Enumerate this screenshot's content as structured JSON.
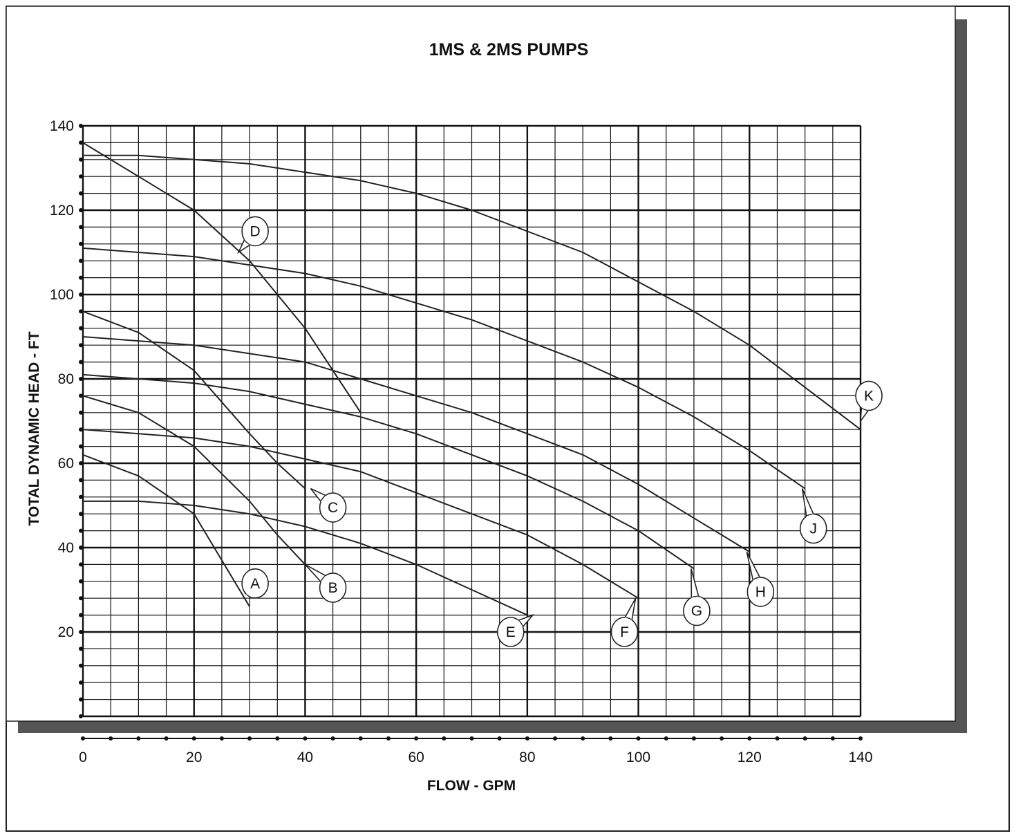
{
  "chart_data": {
    "type": "line",
    "title": "1MS & 2MS PUMPS",
    "xlabel": "FLOW - GPM",
    "ylabel": "TOTAL DYNAMIC HEAD - FT",
    "xlim": [
      0,
      140
    ],
    "ylim": [
      0,
      140
    ],
    "x_ticks": [
      0,
      20,
      40,
      60,
      80,
      100,
      120,
      140
    ],
    "y_ticks": [
      20,
      40,
      60,
      80,
      100,
      120,
      140
    ],
    "x_minor_step": 5,
    "y_minor_step": 4,
    "grid": true,
    "series": [
      {
        "name": "A",
        "points": [
          [
            0,
            62
          ],
          [
            10,
            57
          ],
          [
            20,
            48
          ],
          [
            25,
            37
          ],
          [
            30,
            26
          ]
        ]
      },
      {
        "name": "B",
        "points": [
          [
            0,
            76
          ],
          [
            10,
            72
          ],
          [
            20,
            64
          ],
          [
            30,
            51
          ],
          [
            35,
            43
          ],
          [
            40,
            36
          ]
        ]
      },
      {
        "name": "C",
        "points": [
          [
            0,
            96
          ],
          [
            10,
            91
          ],
          [
            20,
            82
          ],
          [
            30,
            67
          ],
          [
            35,
            60
          ],
          [
            40,
            54
          ]
        ]
      },
      {
        "name": "D",
        "points": [
          [
            0,
            136
          ],
          [
            10,
            128
          ],
          [
            20,
            120
          ],
          [
            30,
            108
          ],
          [
            40,
            92
          ],
          [
            45,
            82
          ],
          [
            50,
            72
          ]
        ]
      },
      {
        "name": "E",
        "points": [
          [
            0,
            51
          ],
          [
            10,
            51
          ],
          [
            20,
            50
          ],
          [
            30,
            48
          ],
          [
            40,
            45
          ],
          [
            50,
            41
          ],
          [
            60,
            36
          ],
          [
            70,
            30
          ],
          [
            80,
            24
          ]
        ]
      },
      {
        "name": "F",
        "points": [
          [
            0,
            68
          ],
          [
            10,
            67
          ],
          [
            20,
            66
          ],
          [
            30,
            64
          ],
          [
            40,
            61
          ],
          [
            50,
            58
          ],
          [
            60,
            53
          ],
          [
            70,
            48
          ],
          [
            80,
            43
          ],
          [
            90,
            36
          ],
          [
            100,
            28
          ]
        ]
      },
      {
        "name": "G",
        "points": [
          [
            0,
            81
          ],
          [
            10,
            80
          ],
          [
            20,
            79
          ],
          [
            30,
            77
          ],
          [
            40,
            74
          ],
          [
            50,
            71
          ],
          [
            60,
            67
          ],
          [
            70,
            62
          ],
          [
            80,
            57
          ],
          [
            90,
            51
          ],
          [
            100,
            44
          ],
          [
            110,
            35
          ]
        ]
      },
      {
        "name": "H",
        "points": [
          [
            0,
            90
          ],
          [
            10,
            89
          ],
          [
            20,
            88
          ],
          [
            30,
            86
          ],
          [
            40,
            84
          ],
          [
            50,
            80
          ],
          [
            60,
            76
          ],
          [
            70,
            72
          ],
          [
            80,
            67
          ],
          [
            90,
            62
          ],
          [
            100,
            55
          ],
          [
            110,
            47
          ],
          [
            120,
            39
          ]
        ]
      },
      {
        "name": "J",
        "points": [
          [
            0,
            111
          ],
          [
            10,
            110
          ],
          [
            20,
            109
          ],
          [
            30,
            107
          ],
          [
            40,
            105
          ],
          [
            50,
            102
          ],
          [
            60,
            98
          ],
          [
            70,
            94
          ],
          [
            80,
            89
          ],
          [
            90,
            84
          ],
          [
            100,
            78
          ],
          [
            110,
            71
          ],
          [
            120,
            63
          ],
          [
            130,
            54
          ]
        ]
      },
      {
        "name": "K",
        "points": [
          [
            0,
            133
          ],
          [
            10,
            133
          ],
          [
            20,
            132
          ],
          [
            30,
            131
          ],
          [
            40,
            129
          ],
          [
            50,
            127
          ],
          [
            60,
            124
          ],
          [
            70,
            120
          ],
          [
            80,
            115
          ],
          [
            90,
            110
          ],
          [
            100,
            103
          ],
          [
            110,
            96
          ],
          [
            120,
            88
          ],
          [
            130,
            78
          ],
          [
            140,
            68
          ]
        ]
      }
    ],
    "callouts": [
      {
        "letter": "A",
        "point": [
          30,
          29
        ],
        "label_at": [
          31,
          31.5
        ]
      },
      {
        "letter": "B",
        "point": [
          40,
          36
        ],
        "label_at": [
          45,
          30.5
        ]
      },
      {
        "letter": "C",
        "point": [
          41,
          54
        ],
        "label_at": [
          45,
          49.5
        ]
      },
      {
        "letter": "D",
        "point": [
          28,
          110
        ],
        "label_at": [
          31,
          115
        ]
      },
      {
        "letter": "E",
        "point": [
          81,
          24
        ],
        "label_at": [
          77,
          20
        ]
      },
      {
        "letter": "F",
        "point": [
          99.5,
          28
        ],
        "label_at": [
          97.5,
          20
        ]
      },
      {
        "letter": "G",
        "point": [
          109.5,
          35
        ],
        "label_at": [
          110.5,
          25
        ]
      },
      {
        "letter": "H",
        "point": [
          119.5,
          39
        ],
        "label_at": [
          122,
          29.5
        ]
      },
      {
        "letter": "J",
        "point": [
          129.5,
          54
        ],
        "label_at": [
          131.5,
          44.5
        ]
      },
      {
        "letter": "K",
        "point": [
          140,
          70
        ],
        "label_at": [
          141.5,
          76
        ]
      }
    ]
  }
}
